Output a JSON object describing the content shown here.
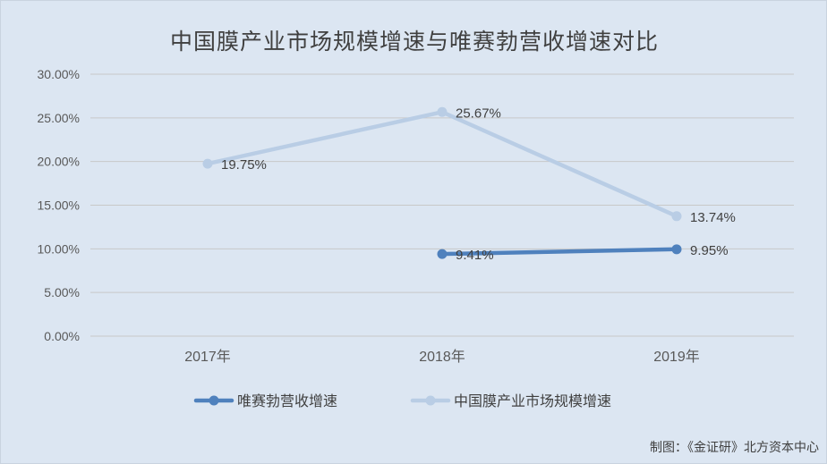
{
  "chart_data": {
    "type": "line",
    "title": "中国膜产业市场规模增速与唯赛勃营收增速对比",
    "categories": [
      "2017年",
      "2018年",
      "2019年"
    ],
    "y_ticks": [
      "0.00%",
      "5.00%",
      "10.00%",
      "15.00%",
      "20.00%",
      "25.00%",
      "30.00%"
    ],
    "ylim": [
      0,
      30
    ],
    "grid": true,
    "legend_position": "bottom",
    "series": [
      {
        "name": "唯赛勃营收增速",
        "values": [
          null,
          9.41,
          9.95
        ],
        "labels": [
          null,
          "9.41%",
          "9.95%"
        ],
        "color": "#4f81bd"
      },
      {
        "name": "中国膜产业市场规模增速",
        "values": [
          19.75,
          25.67,
          13.74
        ],
        "labels": [
          "19.75%",
          "25.67%",
          "13.74%"
        ],
        "color": "#b9cde5"
      }
    ]
  },
  "source": "制图：《金证研》北方资本中心"
}
